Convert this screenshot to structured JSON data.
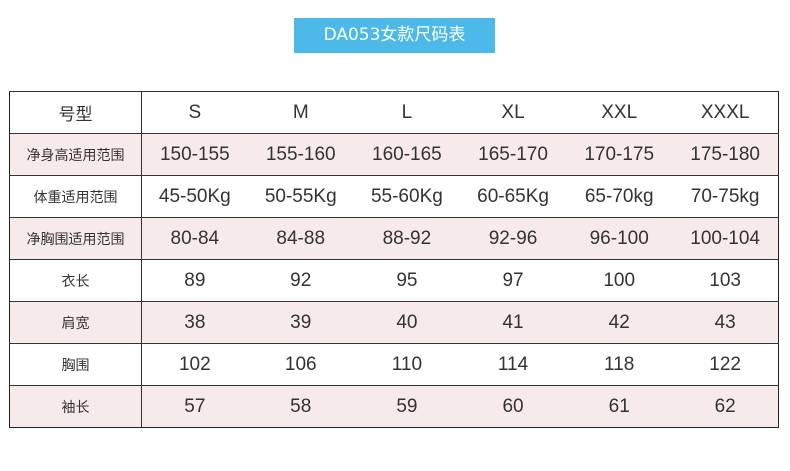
{
  "title": "DA053女款尺码表",
  "colors": {
    "title_bg": "#4cb9e8",
    "row_alt": "#f7eaea"
  },
  "header": {
    "label": "号型",
    "sizes": [
      "S",
      "M",
      "L",
      "XL",
      "XXL",
      "XXXL"
    ]
  },
  "rows": [
    {
      "label": "净身高适用范围",
      "values": [
        "150-155",
        "155-160",
        "160-165",
        "165-170",
        "170-175",
        "175-180"
      ]
    },
    {
      "label": "体重适用范围",
      "values": [
        "45-50Kg",
        "50-55Kg",
        "55-60Kg",
        "60-65Kg",
        "65-70kg",
        "70-75kg"
      ]
    },
    {
      "label": "净胸围适用范围",
      "values": [
        "80-84",
        "84-88",
        "88-92",
        "92-96",
        "96-100",
        "100-104"
      ]
    },
    {
      "label": "衣长",
      "values": [
        "89",
        "92",
        "95",
        "97",
        "100",
        "103"
      ]
    },
    {
      "label": "肩宽",
      "values": [
        "38",
        "39",
        "40",
        "41",
        "42",
        "43"
      ]
    },
    {
      "label": "胸围",
      "values": [
        "102",
        "106",
        "110",
        "114",
        "118",
        "122"
      ]
    },
    {
      "label": "袖长",
      "values": [
        "57",
        "58",
        "59",
        "60",
        "61",
        "62"
      ]
    }
  ]
}
